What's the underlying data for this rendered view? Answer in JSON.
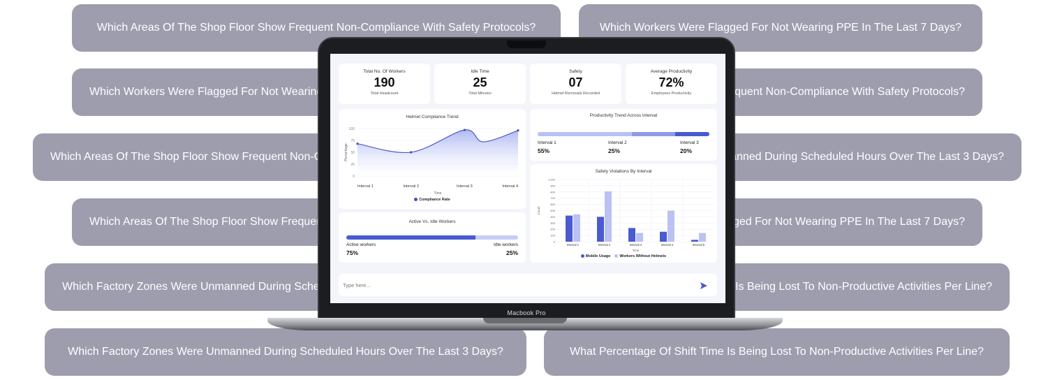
{
  "background_questions": [
    "Which Areas Of The Shop Floor Show Frequent Non-Compliance With Safety Protocols?",
    "Which Workers Were Flagged For Not Wearing PPE In The Last 7 Days?",
    "Which Workers Were Flagged For Not Wearing PPE In The Last 7 Days?",
    "Which Areas Of The Shop Floor Show Frequent Non-Compliance With Safety Protocols?",
    "Which Areas Of The Shop Floor Show Frequent Non-Compliance With Safety Protocols?",
    "Which Factory Zones Were Unmanned During Scheduled Hours Over The Last 3 Days?",
    "Which Areas Of The Shop Floor Show Frequent Non-Compliance With Safety Protocols?",
    "Which Workers Were Flagged For Not Wearing PPE In The Last 7 Days?",
    "Which Factory Zones Were Unmanned During Scheduled Hours Over The Last 3 Days?",
    "What Percentage Of Shift Time Is Being Lost To Non-Productive Activities Per Line?",
    "Which Factory Zones Were Unmanned During Scheduled Hours Over The Last 3 Days?",
    "What Percentage Of Shift Time Is Being Lost To Non-Productive Activities Per Line?"
  ],
  "device_label": "Macbook Pro",
  "stats": [
    {
      "title": "Total No. Of Workers",
      "value": "190",
      "sub": "Total Headcount"
    },
    {
      "title": "Idle Time",
      "value": "25",
      "sub": "Total Minutes"
    },
    {
      "title": "Safety",
      "value": "07",
      "sub": "Helmet Removals Recorded"
    },
    {
      "title": "Average Productivity",
      "value": "72%",
      "sub": "Employees Productivity"
    }
  ],
  "helmet_chart": {
    "title": "Helmet Compliance Trend",
    "ylabel": "Percentage",
    "xlabel": "Time",
    "yticks": [
      "100",
      "75",
      "50",
      "25",
      "0"
    ],
    "legend": "Compliance Rate",
    "color": "#3d4fc4"
  },
  "productivity": {
    "title": "Productivity Trend Across Interval",
    "intervals": [
      {
        "label": "Interval 1",
        "value": "55%",
        "pct": 55,
        "color": "#b9c2f3"
      },
      {
        "label": "Interval 2",
        "value": "25%",
        "pct": 25,
        "color": "#8f9ae8"
      },
      {
        "label": "Interval 3",
        "value": "20%",
        "pct": 20,
        "color": "#4a5ad0"
      }
    ]
  },
  "active_idle": {
    "title": "Active Vs. Idle Workers",
    "active_label": "Active workers",
    "active_value": "75%",
    "active_pct": 75,
    "idle_label": "Idle workers",
    "idle_value": "25%",
    "idle_pct": 25,
    "active_color": "#4a5ad0",
    "idle_color": "#c5ccf6"
  },
  "chat": {
    "placeholder": "Type here..."
  },
  "chart_data": [
    {
      "type": "area",
      "title": "Helmet Compliance Trend",
      "xlabel": "Time",
      "ylabel": "Percentage",
      "ylim": [
        0,
        100
      ],
      "categories": [
        "Interval 1",
        "Interval 2",
        "Interval 3",
        "Interval 4"
      ],
      "series": [
        {
          "name": "Compliance Rate",
          "x": [
            1,
            2,
            3,
            3.35,
            4
          ],
          "values": [
            68,
            50,
            97,
            72,
            96
          ]
        }
      ]
    },
    {
      "type": "bar",
      "title": "Safety Violations By Interval",
      "xlabel": "Time",
      "ylabel": "Count",
      "ylim": [
        0,
        1000
      ],
      "yticks": [
        "1,000",
        "900",
        "800",
        "700",
        "600",
        "500",
        "400",
        "300",
        "200",
        "100",
        "0"
      ],
      "categories": [
        "Interval 1",
        "Interval 2",
        "Interval 3",
        "Interval 4",
        "Interval 5"
      ],
      "series": [
        {
          "name": "Mobile Usage",
          "values": [
            420,
            400,
            220,
            160,
            30
          ],
          "color": "#4a5ad0"
        },
        {
          "name": "Workers Without Helmets",
          "values": [
            440,
            810,
            140,
            500,
            140
          ],
          "color": "#b9c2f3"
        }
      ]
    }
  ]
}
